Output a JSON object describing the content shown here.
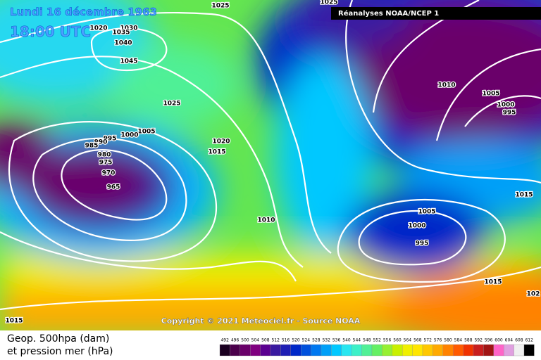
{
  "header": {
    "date": "Lundi 16 décembre 1963",
    "time": "18:00 UTC",
    "source": "Réanalyses NOAA/NCEP 1"
  },
  "copyright": "Copyright © 2021 Meteociel.fr - Source NOAA",
  "legend": {
    "line1": "Geop. 500hpa (dam)",
    "line2": "et pression mer (hPa)"
  },
  "isobar_labels": [
    "1025",
    "1025",
    "1020",
    "1030",
    "1035",
    "1040",
    "1045",
    "1025",
    "1005",
    "1000",
    "995",
    "990",
    "985",
    "980",
    "975",
    "970",
    "965",
    "1020",
    "1015",
    "1010",
    "1010",
    "1005",
    "1000",
    "995",
    "1015",
    "1005",
    "1000",
    "995",
    "1015",
    "102",
    "1015"
  ],
  "scale": {
    "values": [
      492,
      496,
      500,
      504,
      508,
      512,
      516,
      520,
      524,
      528,
      532,
      536,
      540,
      544,
      548,
      552,
      556,
      560,
      564,
      568,
      572,
      576,
      580,
      584,
      588,
      592,
      596,
      600,
      604,
      608,
      612
    ],
    "colors": [
      "#1a0020",
      "#4b004b",
      "#6a006a",
      "#800080",
      "#5a0090",
      "#3a1aa0",
      "#1e1eb4",
      "#0028c8",
      "#0050dc",
      "#0078f0",
      "#00a0f8",
      "#00c8ff",
      "#28e6f0",
      "#3cf0c8",
      "#50f096",
      "#64f064",
      "#96f032",
      "#c8f000",
      "#f0f000",
      "#ffe600",
      "#ffc800",
      "#ffaa00",
      "#ff8200",
      "#ff5a00",
      "#f03200",
      "#c81e1e",
      "#a01414",
      "#ff64c8",
      "#e0a0e0",
      "#f0f0f0",
      "#000000"
    ]
  }
}
